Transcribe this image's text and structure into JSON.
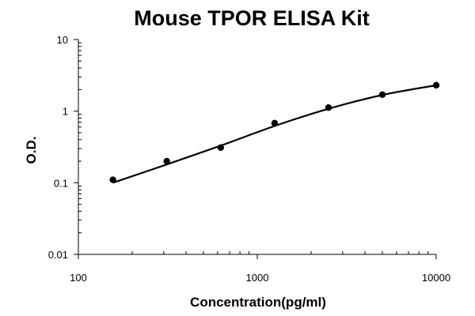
{
  "chart_data": {
    "type": "scatter",
    "title": "Mouse TPOR ELISA Kit",
    "xlabel": "Concentration(pg/ml)",
    "ylabel": "O.D.",
    "x_scale": "log",
    "y_scale": "log",
    "xlim": [
      100,
      10000
    ],
    "ylim": [
      0.01,
      10
    ],
    "x_ticks": [
      "100",
      "1000",
      "10000"
    ],
    "y_ticks": [
      "0.01",
      "0.1",
      "1",
      "10"
    ],
    "grid": false,
    "legend": "none",
    "colors": {
      "marker": "#000000",
      "line": "#000000",
      "axis": "#000000"
    },
    "series": [
      {
        "points": [
          {
            "x": 156,
            "y": 0.11
          },
          {
            "x": 312,
            "y": 0.2
          },
          {
            "x": 625,
            "y": 0.31
          },
          {
            "x": 1250,
            "y": 0.68
          },
          {
            "x": 2500,
            "y": 1.12
          },
          {
            "x": 5000,
            "y": 1.7
          },
          {
            "x": 10000,
            "y": 2.3
          }
        ],
        "fit_curve": [
          {
            "x": 156,
            "y": 0.1
          },
          {
            "x": 312,
            "y": 0.18
          },
          {
            "x": 625,
            "y": 0.33
          },
          {
            "x": 1250,
            "y": 0.62
          },
          {
            "x": 2500,
            "y": 1.08
          },
          {
            "x": 5000,
            "y": 1.68
          },
          {
            "x": 10000,
            "y": 2.3
          }
        ]
      }
    ]
  }
}
